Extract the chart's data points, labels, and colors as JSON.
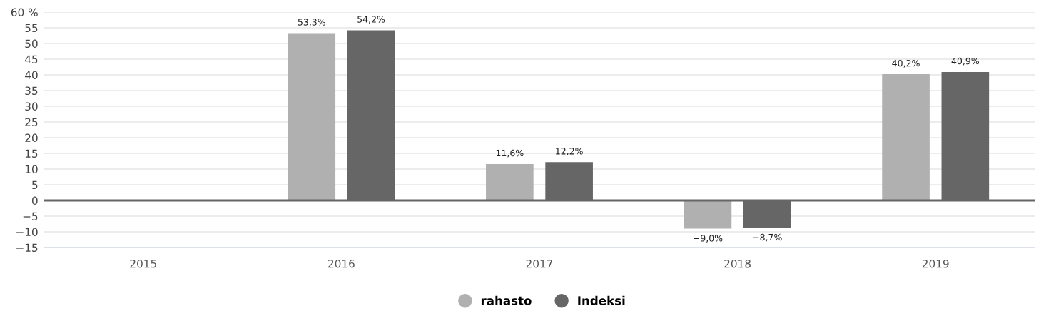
{
  "chart_data": {
    "type": "bar",
    "categories": [
      "2015",
      "2016",
      "2017",
      "2018",
      "2019"
    ],
    "series": [
      {
        "name": "rahasto",
        "color": "#b0b0b0",
        "values": [
          null,
          53.3,
          11.6,
          -9.0,
          40.2
        ],
        "value_labels": [
          null,
          "53,3%",
          "11,6%",
          "−9,0%",
          "40,2%"
        ]
      },
      {
        "name": "Indeksi",
        "color": "#666666",
        "values": [
          null,
          54.2,
          12.2,
          -8.7,
          40.9
        ],
        "value_labels": [
          null,
          "54,2%",
          "12,2%",
          "−8,7%",
          "40,9%"
        ]
      }
    ],
    "ylim": [
      -15,
      60
    ],
    "yticks": [
      {
        "value": -15,
        "label": "−15"
      },
      {
        "value": -10,
        "label": "−10"
      },
      {
        "value": -5,
        "label": "−5"
      },
      0,
      5,
      10,
      15,
      20,
      25,
      30,
      35,
      40,
      45,
      50,
      55,
      {
        "value": 60,
        "label": "60 %"
      }
    ],
    "ref_lines": [
      {
        "axis": "y",
        "value": 0,
        "color": "#666666"
      }
    ],
    "grid": "y",
    "legend": "bottom",
    "marker": "circle"
  }
}
